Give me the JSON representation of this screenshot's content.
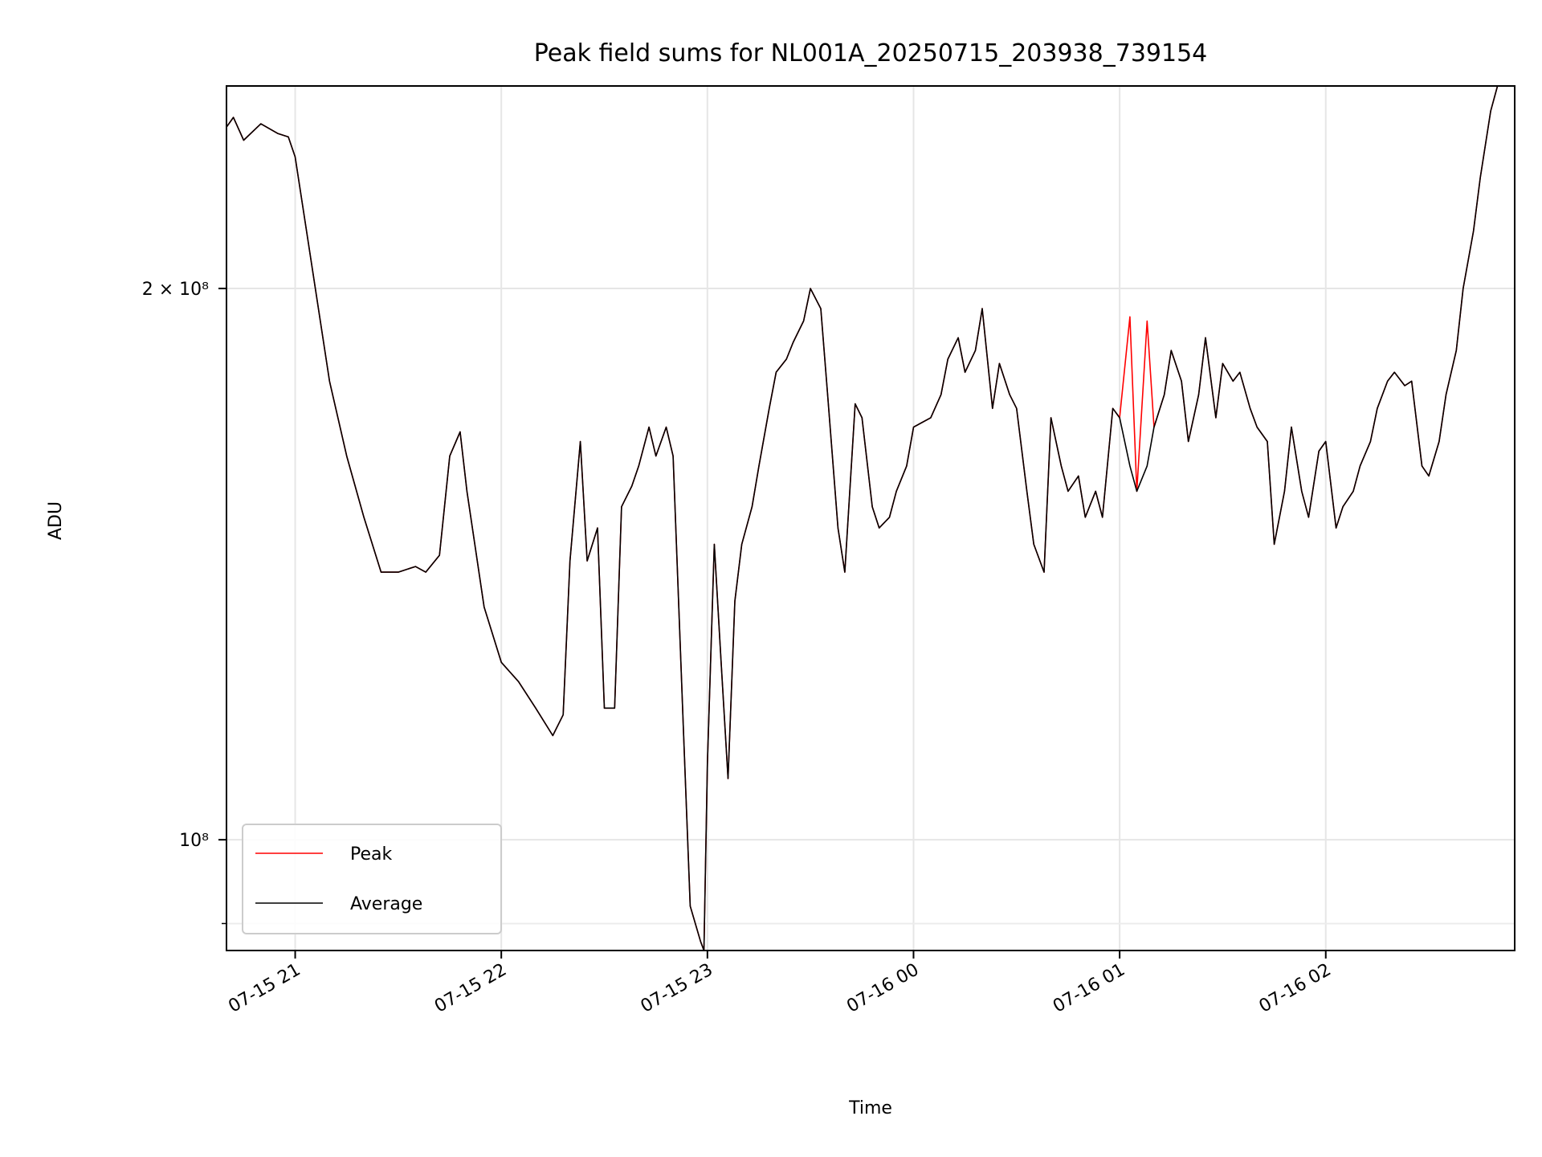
{
  "chart_data": {
    "type": "line",
    "title": "Peak field sums for NL001A_20250715_203938_739154",
    "xlabel": "Time",
    "ylabel": "ADU",
    "y_scale": "log",
    "ylim": [
      87000000,
      258000000
    ],
    "xlim": [
      "2025-07-15 20:40",
      "2025-07-16 02:55"
    ],
    "x_tick_labels": [
      "07-15 21",
      "07-15 22",
      "07-15 23",
      "07-16 00",
      "07-16 01",
      "07-16 02"
    ],
    "x_ticks": [
      "2025-07-15 21:00",
      "2025-07-15 22:00",
      "2025-07-15 23:00",
      "2025-07-16 00:00",
      "2025-07-16 01:00",
      "2025-07-16 02:00"
    ],
    "y_major_ticks": [
      {
        "value": 100000000,
        "label": "10⁸"
      },
      {
        "value": 200000000,
        "label": "2 × 10⁸"
      }
    ],
    "y_minor_ticks": [
      90000000
    ],
    "grid": true,
    "legend_position": "lower-left",
    "x": [
      "2025-07-15 20:40",
      "2025-07-15 20:42",
      "2025-07-15 20:45",
      "2025-07-15 20:50",
      "2025-07-15 20:55",
      "2025-07-15 20:58",
      "2025-07-15 21:00",
      "2025-07-15 21:05",
      "2025-07-15 21:10",
      "2025-07-15 21:15",
      "2025-07-15 21:20",
      "2025-07-15 21:25",
      "2025-07-15 21:30",
      "2025-07-15 21:35",
      "2025-07-15 21:38",
      "2025-07-15 21:42",
      "2025-07-15 21:45",
      "2025-07-15 21:48",
      "2025-07-15 21:50",
      "2025-07-15 21:55",
      "2025-07-15 22:00",
      "2025-07-15 22:05",
      "2025-07-15 22:10",
      "2025-07-15 22:15",
      "2025-07-15 22:18",
      "2025-07-15 22:20",
      "2025-07-15 22:23",
      "2025-07-15 22:25",
      "2025-07-15 22:28",
      "2025-07-15 22:30",
      "2025-07-15 22:33",
      "2025-07-15 22:35",
      "2025-07-15 22:38",
      "2025-07-15 22:40",
      "2025-07-15 22:43",
      "2025-07-15 22:45",
      "2025-07-15 22:48",
      "2025-07-15 22:50",
      "2025-07-15 22:53",
      "2025-07-15 22:55",
      "2025-07-15 22:58",
      "2025-07-15 22:59",
      "2025-07-15 23:00",
      "2025-07-15 23:02",
      "2025-07-15 23:04",
      "2025-07-15 23:06",
      "2025-07-15 23:08",
      "2025-07-15 23:10",
      "2025-07-15 23:13",
      "2025-07-15 23:15",
      "2025-07-15 23:18",
      "2025-07-15 23:20",
      "2025-07-15 23:23",
      "2025-07-15 23:25",
      "2025-07-15 23:28",
      "2025-07-15 23:30",
      "2025-07-15 23:33",
      "2025-07-15 23:35",
      "2025-07-15 23:38",
      "2025-07-15 23:40",
      "2025-07-15 23:43",
      "2025-07-15 23:45",
      "2025-07-15 23:48",
      "2025-07-15 23:50",
      "2025-07-15 23:53",
      "2025-07-15 23:55",
      "2025-07-15 23:58",
      "2025-07-16 00:00",
      "2025-07-16 00:05",
      "2025-07-16 00:08",
      "2025-07-16 00:10",
      "2025-07-16 00:13",
      "2025-07-16 00:15",
      "2025-07-16 00:18",
      "2025-07-16 00:20",
      "2025-07-16 00:23",
      "2025-07-16 00:25",
      "2025-07-16 00:28",
      "2025-07-16 00:30",
      "2025-07-16 00:33",
      "2025-07-16 00:35",
      "2025-07-16 00:38",
      "2025-07-16 00:40",
      "2025-07-16 00:43",
      "2025-07-16 00:45",
      "2025-07-16 00:48",
      "2025-07-16 00:50",
      "2025-07-16 00:53",
      "2025-07-16 00:55",
      "2025-07-16 00:58",
      "2025-07-16 01:00",
      "2025-07-16 01:03",
      "2025-07-16 01:05",
      "2025-07-16 01:08",
      "2025-07-16 01:10",
      "2025-07-16 01:13",
      "2025-07-16 01:15",
      "2025-07-16 01:18",
      "2025-07-16 01:20",
      "2025-07-16 01:23",
      "2025-07-16 01:25",
      "2025-07-16 01:28",
      "2025-07-16 01:30",
      "2025-07-16 01:33",
      "2025-07-16 01:35",
      "2025-07-16 01:38",
      "2025-07-16 01:40",
      "2025-07-16 01:43",
      "2025-07-16 01:45",
      "2025-07-16 01:48",
      "2025-07-16 01:50",
      "2025-07-16 01:53",
      "2025-07-16 01:55",
      "2025-07-16 01:58",
      "2025-07-16 02:00",
      "2025-07-16 02:03",
      "2025-07-16 02:05",
      "2025-07-16 02:08",
      "2025-07-16 02:10",
      "2025-07-16 02:13",
      "2025-07-16 02:15",
      "2025-07-16 02:18",
      "2025-07-16 02:20",
      "2025-07-16 02:23",
      "2025-07-16 02:25",
      "2025-07-16 02:28",
      "2025-07-16 02:30",
      "2025-07-16 02:33",
      "2025-07-16 02:35",
      "2025-07-16 02:38",
      "2025-07-16 02:40",
      "2025-07-16 02:43",
      "2025-07-16 02:45",
      "2025-07-16 02:48",
      "2025-07-16 02:50",
      "2025-07-16 02:52"
    ],
    "series": [
      {
        "name": "Peak",
        "color": "#ff0000",
        "values": [
          245000000,
          248000000,
          241000000,
          246000000,
          243000000,
          242000000,
          236000000,
          205000000,
          178000000,
          162000000,
          150000000,
          140000000,
          140000000,
          141000000,
          140000000,
          143000000,
          162000000,
          167000000,
          155000000,
          134000000,
          125000000,
          122000000,
          118000000,
          114000000,
          117000000,
          142000000,
          165000000,
          142000000,
          148000000,
          118000000,
          118000000,
          152000000,
          156000000,
          160000000,
          168000000,
          162000000,
          168000000,
          162000000,
          115000000,
          92000000,
          88000000,
          87000000,
          110000000,
          145000000,
          125000000,
          108000000,
          135000000,
          145000000,
          152000000,
          160000000,
          172000000,
          180000000,
          183000000,
          187000000,
          192000000,
          200000000,
          195000000,
          175000000,
          148000000,
          140000000,
          173000000,
          170000000,
          152000000,
          148000000,
          150000000,
          155000000,
          160000000,
          168000000,
          170000000,
          175000000,
          183000000,
          188000000,
          180000000,
          185000000,
          195000000,
          172000000,
          182000000,
          175000000,
          172000000,
          155000000,
          145000000,
          140000000,
          170000000,
          160000000,
          155000000,
          158000000,
          150000000,
          155000000,
          150000000,
          172000000,
          170000000,
          193000000,
          155000000,
          192000000,
          168000000,
          175000000,
          185000000,
          178000000,
          165000000,
          175000000,
          188000000,
          170000000,
          182000000,
          178000000,
          180000000,
          172000000,
          168000000,
          165000000,
          145000000,
          155000000,
          168000000,
          155000000,
          150000000,
          163000000,
          165000000,
          148000000,
          152000000,
          155000000,
          160000000,
          165000000,
          172000000,
          178000000,
          180000000,
          177000000,
          178000000,
          160000000,
          158000000,
          165000000,
          175000000,
          185000000,
          200000000,
          215000000,
          230000000,
          250000000,
          258000000,
          258000000
        ]
      },
      {
        "name": "Average",
        "color": "#000000",
        "values": [
          245000000,
          248000000,
          241000000,
          246000000,
          243000000,
          242000000,
          236000000,
          205000000,
          178000000,
          162000000,
          150000000,
          140000000,
          140000000,
          141000000,
          140000000,
          143000000,
          162000000,
          167000000,
          155000000,
          134000000,
          125000000,
          122000000,
          118000000,
          114000000,
          117000000,
          142000000,
          165000000,
          142000000,
          148000000,
          118000000,
          118000000,
          152000000,
          156000000,
          160000000,
          168000000,
          162000000,
          168000000,
          162000000,
          115000000,
          92000000,
          88000000,
          87000000,
          110000000,
          145000000,
          125000000,
          108000000,
          135000000,
          145000000,
          152000000,
          160000000,
          172000000,
          180000000,
          183000000,
          187000000,
          192000000,
          200000000,
          195000000,
          175000000,
          148000000,
          140000000,
          173000000,
          170000000,
          152000000,
          148000000,
          150000000,
          155000000,
          160000000,
          168000000,
          170000000,
          175000000,
          183000000,
          188000000,
          180000000,
          185000000,
          195000000,
          172000000,
          182000000,
          175000000,
          172000000,
          155000000,
          145000000,
          140000000,
          170000000,
          160000000,
          155000000,
          158000000,
          150000000,
          155000000,
          150000000,
          172000000,
          170000000,
          160000000,
          155000000,
          160000000,
          168000000,
          175000000,
          185000000,
          178000000,
          165000000,
          175000000,
          188000000,
          170000000,
          182000000,
          178000000,
          180000000,
          172000000,
          168000000,
          165000000,
          145000000,
          155000000,
          168000000,
          155000000,
          150000000,
          163000000,
          165000000,
          148000000,
          152000000,
          155000000,
          160000000,
          165000000,
          172000000,
          178000000,
          180000000,
          177000000,
          178000000,
          160000000,
          158000000,
          165000000,
          175000000,
          185000000,
          200000000,
          215000000,
          230000000,
          250000000,
          258000000,
          258000000
        ]
      }
    ]
  }
}
